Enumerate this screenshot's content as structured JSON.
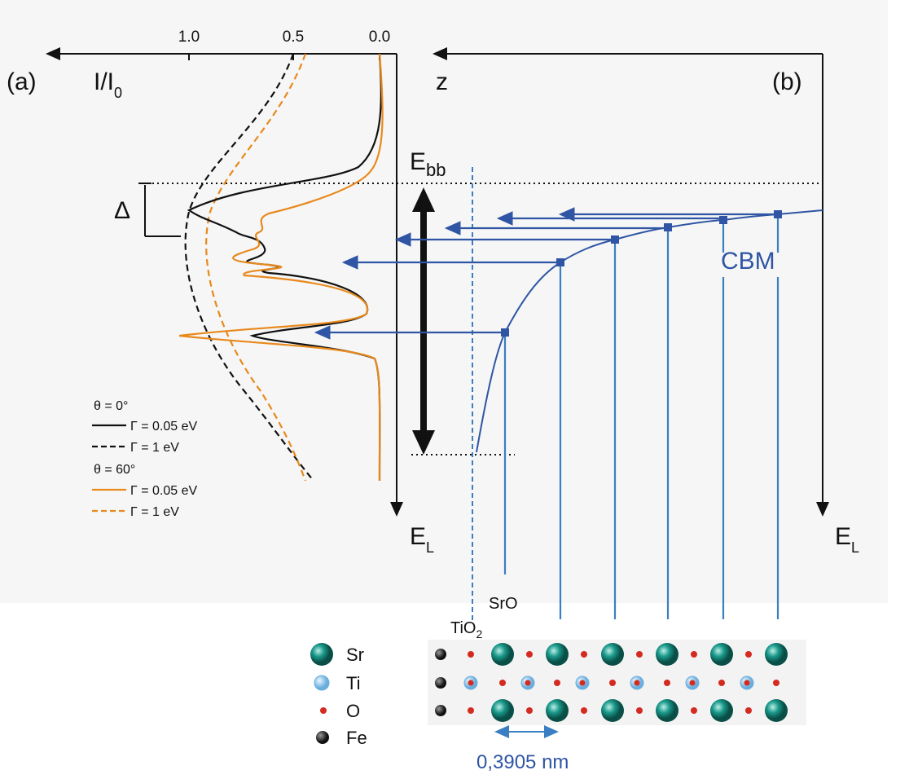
{
  "panel_a": {
    "label": "(a)",
    "x_axis_label": "I/I",
    "x_axis_sub": "0",
    "ticks": [
      "1.0",
      "0.5",
      "0.0"
    ],
    "y_axis_label": "E",
    "y_axis_sub": "L",
    "delta": "Δ",
    "legend": [
      "θ = 0°",
      "Γ = 0.05 eV",
      "Γ = 1 eV",
      "θ = 60°",
      "Γ = 0.05 eV",
      "Γ = 1 eV"
    ]
  },
  "panel_b": {
    "label": "(b)",
    "x_axis_label": "z",
    "y_axis_label": "E",
    "y_axis_sub": "L",
    "ebb_label": "E",
    "ebb_sub": "bb",
    "cbm_label": "CBM"
  },
  "lattice": {
    "layer_srо": "SrO",
    "layer_tio": "TiO",
    "layer_tio_sub": "2",
    "legend": [
      "Sr",
      "Ti",
      "O",
      "Fe"
    ],
    "spacing": "0,3905 nm"
  }
}
